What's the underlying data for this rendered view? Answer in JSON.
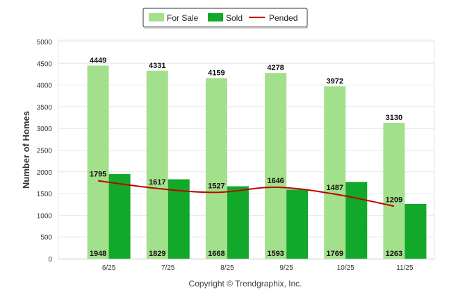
{
  "chart_data": {
    "type": "bar",
    "categories": [
      "6/25",
      "7/25",
      "8/25",
      "9/25",
      "10/25",
      "11/25"
    ],
    "series": [
      {
        "name": "For Sale",
        "type": "bar",
        "color": "#a3e08c",
        "values": [
          4449,
          4331,
          4159,
          4278,
          3972,
          3130
        ]
      },
      {
        "name": "Sold",
        "type": "bar",
        "color": "#12a82a",
        "values": [
          1948,
          1829,
          1668,
          1593,
          1769,
          1263
        ]
      },
      {
        "name": "Pended",
        "type": "line",
        "color": "#c00000",
        "values": [
          1795,
          1617,
          1527,
          1646,
          1487,
          1209
        ]
      }
    ],
    "title": "",
    "xlabel": "",
    "ylabel": "Number of Homes",
    "ylim": [
      0,
      5000
    ],
    "yticks": [
      0,
      500,
      1000,
      1500,
      2000,
      2500,
      3000,
      3500,
      4000,
      4500,
      5000
    ],
    "grid": true,
    "legend": "top-center"
  },
  "footer": {
    "copyright": "Copyright © Trendgraphix, Inc."
  }
}
